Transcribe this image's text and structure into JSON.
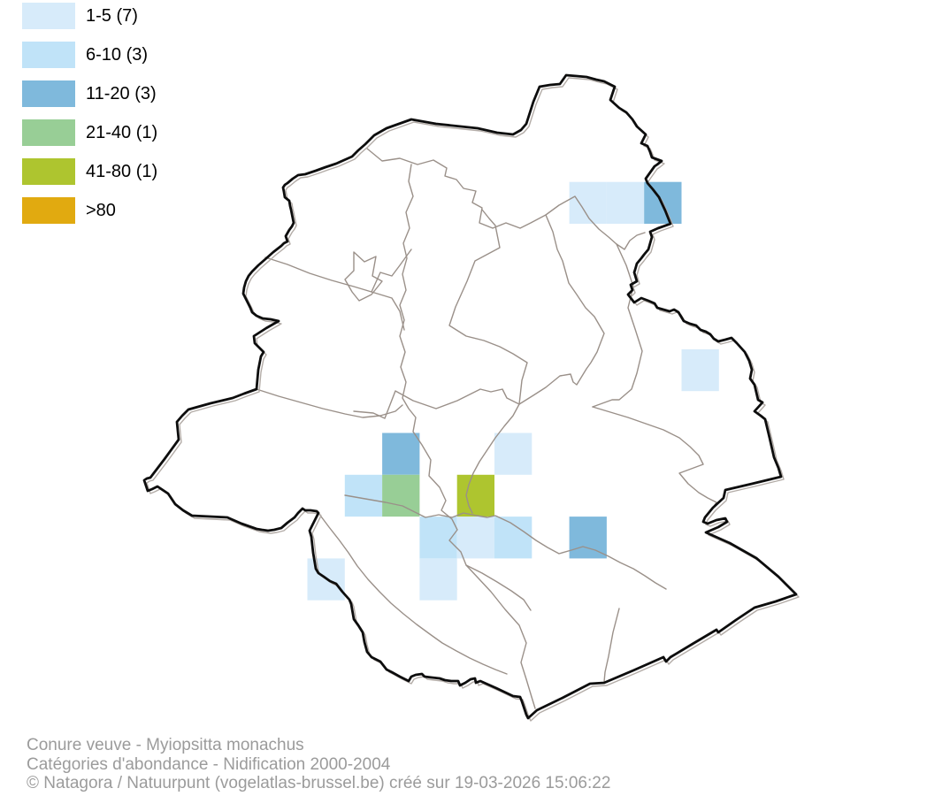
{
  "legend": {
    "items": [
      {
        "label": "1-5 (7)",
        "range": "1-5",
        "count_shown": "(7)",
        "color": "#D7EBFA"
      },
      {
        "label": "6-10 (3)",
        "range": "6-10",
        "count_shown": "(3)",
        "color": "#C0E3F8"
      },
      {
        "label": "11-20 (3)",
        "range": "11-20",
        "count_shown": "(3)",
        "color": "#7FB9DC"
      },
      {
        "label": "21-40 (1)",
        "range": "21-40",
        "count_shown": "(1)",
        "color": "#98CE96"
      },
      {
        "label": "41-80 (1)",
        "range": "41-80",
        "count_shown": "(1)",
        "color": "#AEC52F"
      },
      {
        "label": ">80",
        "range": ">80",
        "count_shown": "",
        "color": "#E1AA10"
      }
    ]
  },
  "footer": {
    "species": "Conure veuve - Myiopsitta monachus",
    "subtitle": "Catégories d'abondance - Nidification 2000-2004",
    "credit": "© Natagora / Natuurpunt (vogelatlas-brussel.be) créé sur 19-03-2026 15:06:22"
  },
  "map_data": {
    "type": "choropleth-grid",
    "grid": {
      "origin_x": 347.5,
      "origin_y": 205.7,
      "cell_w": 42.3,
      "cell_h": 47.3
    },
    "category_colors": {
      "1-5": "#D7EBFA",
      "6-10": "#C0E3F8",
      "11-20": "#7FB9DC",
      "21-40": "#98CE96",
      "41-80": "#AEC52F",
      ">80": "#E1AA10"
    },
    "cells": [
      {
        "col": 7,
        "row": 0,
        "category": "1-5"
      },
      {
        "col": 8,
        "row": 0,
        "category": "1-5"
      },
      {
        "col": 9,
        "row": 0,
        "category": "11-20"
      },
      {
        "col": 10,
        "row": 4,
        "category": "1-5"
      },
      {
        "col": 2,
        "row": 6,
        "category": "11-20"
      },
      {
        "col": 5,
        "row": 6,
        "category": "1-5"
      },
      {
        "col": 1,
        "row": 7,
        "category": "6-10"
      },
      {
        "col": 2,
        "row": 7,
        "category": "21-40"
      },
      {
        "col": 4,
        "row": 7,
        "category": "41-80"
      },
      {
        "col": 3,
        "row": 8,
        "category": "6-10"
      },
      {
        "col": 4,
        "row": 8,
        "category": "1-5"
      },
      {
        "col": 5,
        "row": 8,
        "category": "6-10"
      },
      {
        "col": 7,
        "row": 8,
        "category": "11-20"
      },
      {
        "col": 0,
        "row": 9,
        "category": "1-5"
      },
      {
        "col": 3,
        "row": 9,
        "category": "1-5"
      }
    ],
    "region_boundary_color": "#0d0d0d",
    "commune_line_color": "#9a9089"
  }
}
